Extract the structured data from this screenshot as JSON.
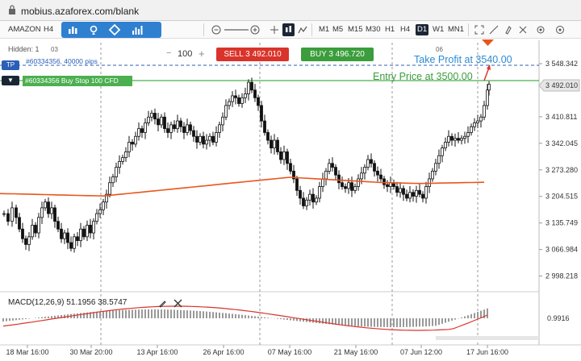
{
  "browser": {
    "url": "mobius.azaforex.com/blank"
  },
  "toolbar": {
    "symbol": "AMAZON",
    "timeframe_current": "H4",
    "timeframes": [
      "M1",
      "M5",
      "M15",
      "M30",
      "H1",
      "H4",
      "D1",
      "W1",
      "MN1"
    ],
    "active_timeframe": "H4"
  },
  "trade": {
    "hidden_label": "Hidden: 1",
    "volume": "100",
    "sell_label": "SELL 3 492.010",
    "buy_label": "BUY 3 496.720",
    "tp_tag": "TP",
    "tp_position_text": "#60334356, 40000 pips",
    "pending_tag": "▼",
    "pending_order_text": "#60334356 Buy Stop 100 CFD",
    "take_profit_annotation": "Take Profit at 3540.00",
    "entry_annotation": "Entry Price at 3500.00"
  },
  "axis": {
    "price_labels": [
      "3 548.342",
      "3 492.010",
      "3 410.811",
      "3 342.045",
      "3 273.280",
      "3 204.515",
      "3 135.749",
      "3 066.984",
      "2 998.218"
    ],
    "current_price": "3 492.010",
    "macd_value": "0.9916",
    "date_labels": [
      "18 Mar 16:00",
      "30 Mar 20:00",
      "13 Apr 16:00",
      "26 Apr 16:00",
      "07 May 16:00",
      "21 May 16:00",
      "07 Jun 12:00",
      "17 Jun 16:00"
    ],
    "day_markers": [
      "03",
      "06"
    ]
  },
  "indicator": {
    "macd_label": "MACD(12,26,9) 51.1956 38.5747"
  },
  "colors": {
    "sell": "#d9342b",
    "buy": "#3b9d3b",
    "accent": "#2f80d1",
    "ma": "#e8561c",
    "tp": "#2b8ad6"
  }
}
